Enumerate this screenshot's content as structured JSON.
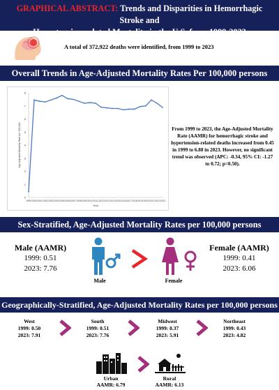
{
  "header": {
    "label": "GRAPHICAL ABSTRACT:",
    "title_line1": "Trends and Disparities in Hemorrhagic Stroke and",
    "title_line2": "Hypertension-related Mortality in the U.S. from 1999-2023"
  },
  "summary": {
    "total_deaths": "A total of 372,922 deaths were identified, from 1999 to 2023"
  },
  "section_trends": {
    "title": "Overall Trends in Age-Adjusted Mortality Rates Per 100,000 persons"
  },
  "trend_text": "From 1999 to 2023, the Age-Adjusted Mortality Rate (AAMR) for hemorrhagic stroke and hypertension-related deaths increased from 0.45 in 1999 to 6.88 in 2023. However, no significant trend was observed (APC: -0.34, 95% CI: -1.27 to 0.72; p=0.50).",
  "chart_data": {
    "type": "line",
    "ylabel": "Age-Adjusted Mortality Rate per 100,000",
    "xlabel": "Year",
    "ylim": [
      0,
      8
    ],
    "yticks": [
      "0",
      "1",
      "2",
      "3",
      "4",
      "5",
      "6",
      "7",
      "8"
    ],
    "x": [
      "1999",
      "2000",
      "2001",
      "2002",
      "2003",
      "2004",
      "2005",
      "2006",
      "2007",
      "2008",
      "2009",
      "2010",
      "2011",
      "2012",
      "2013",
      "2014",
      "2015",
      "2016",
      "2017",
      "2018",
      "2019",
      "2020",
      "2021",
      "2022",
      "2023"
    ],
    "series": [
      {
        "values": [
          0.45,
          7.45,
          7.35,
          7.3,
          7.45,
          7.6,
          7.8,
          7.55,
          7.5,
          7.35,
          7.2,
          7.25,
          7.2,
          6.9,
          6.85,
          6.8,
          6.8,
          6.7,
          6.75,
          6.75,
          6.95,
          7.0,
          7.45,
          7.2,
          6.88
        ],
        "color": "#4a78c2"
      }
    ],
    "grid": false
  },
  "section_sex": {
    "title": "Sex-Stratified, Age-Adjusted Mortality Rates per 100,000 persons"
  },
  "sex": {
    "male": {
      "heading": "Male (AAMR)",
      "y1999": "1999: 0.51",
      "y2023": "2023: 7.76",
      "icon_label": "Male",
      "color": "#2e86c1"
    },
    "female": {
      "heading": "Female (AAMR)",
      "y1999": "1999: 0.41",
      "y2023": "2023: 6.06",
      "icon_label": "Female",
      "color": "#a4307d"
    },
    "comparator": ">"
  },
  "section_geo": {
    "title": "Geographically-Stratified, Age-Adjusted Mortality Rates per 100,000 persons"
  },
  "regions": [
    {
      "name": "West",
      "y1999": "1999: 0.50",
      "y2023": "2023: 7.91"
    },
    {
      "name": "South",
      "y1999": "1999: 0.51",
      "y2023": "2023: 7.76"
    },
    {
      "name": "Midwest",
      "y1999": "1999: 0.37",
      "y2023": "2023: 5.91"
    },
    {
      "name": "Northeast",
      "y1999": "1999: 0.43",
      "y2023": "2023: 4.82"
    }
  ],
  "urbanicity": [
    {
      "name": "Urban",
      "aamr": "AAMR: 6.79"
    },
    {
      "name": "Rural",
      "aamr": "AAMR: 6.13"
    }
  ],
  "colors": {
    "band": "#16215a",
    "accent": "#a4307d",
    "red": "#e8252b"
  }
}
